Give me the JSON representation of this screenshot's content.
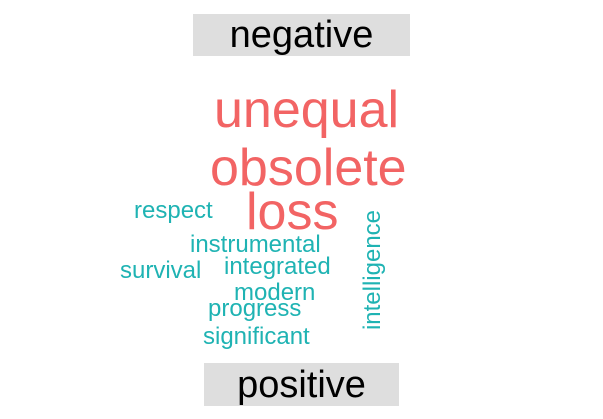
{
  "cloud": {
    "negative_label": "negative",
    "positive_label": "positive",
    "colors": {
      "negative": "#f26464",
      "positive": "#1fb3b3",
      "label_background": "#dedede",
      "label_text": "#000000"
    },
    "negative_words": [
      "unequal",
      "obsolete",
      "loss"
    ],
    "positive_words": [
      "respect",
      "instrumental",
      "intelligence",
      "survival",
      "integrated",
      "modern",
      "progress",
      "significant"
    ]
  }
}
